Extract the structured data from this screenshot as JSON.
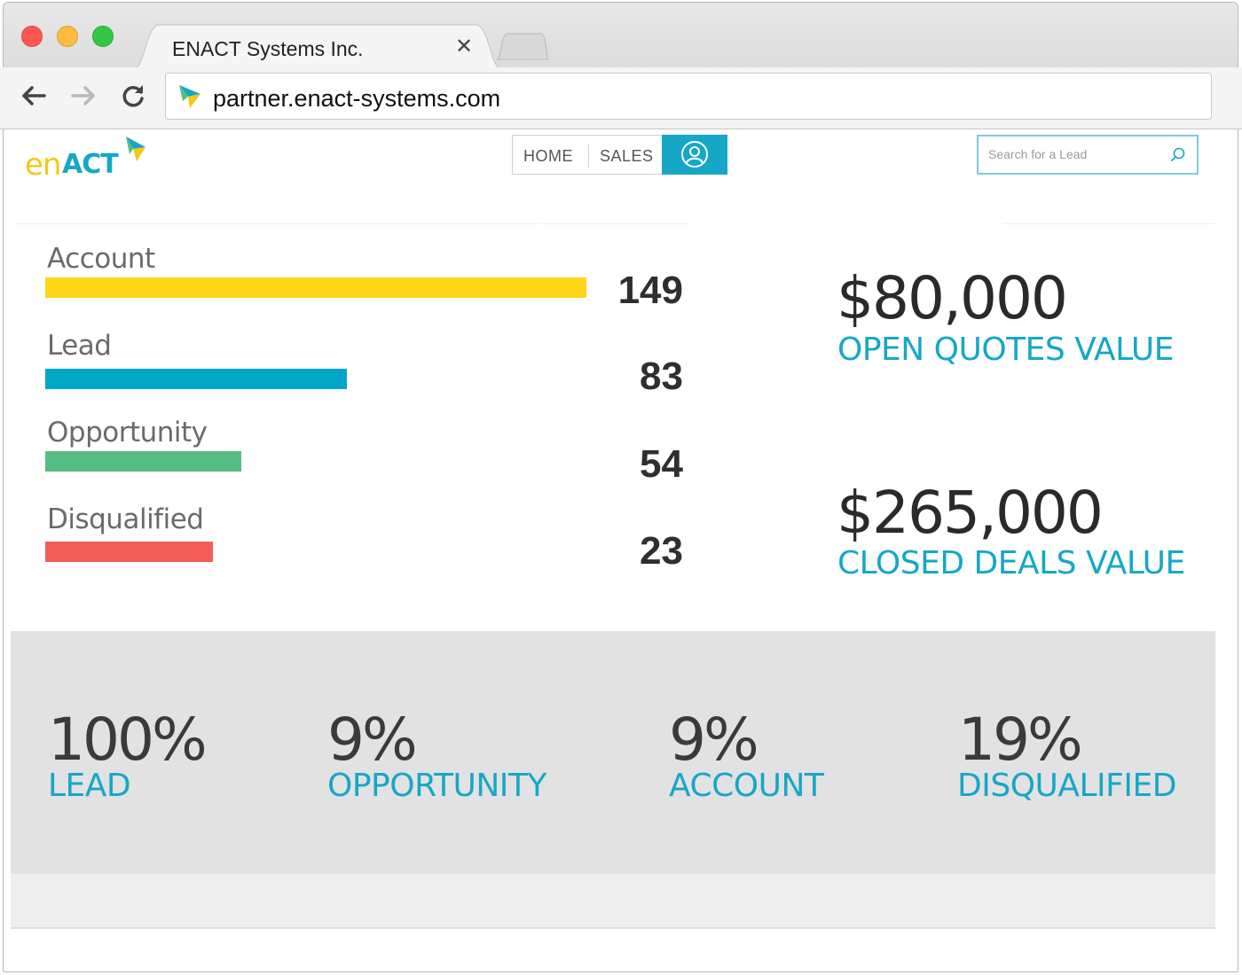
{
  "browser": {
    "tab_title": "ENACT Systems Inc.",
    "tab_close": "✕",
    "url": "partner.enact-systems.com"
  },
  "header": {
    "logo_text_en": "en",
    "logo_text_act": "ACT",
    "nav": {
      "home": "HOME",
      "sales": "SALES"
    },
    "search_placeholder": "Search for a Lead"
  },
  "pipeline": {
    "rows": [
      {
        "label": "Account",
        "count": "149",
        "color": "#fdd619",
        "value": 149
      },
      {
        "label": "Lead",
        "count": "83",
        "color": "#00a6c8",
        "value": 83
      },
      {
        "label": "Opportunity",
        "count": "54",
        "color": "#58bd82",
        "value": 54
      },
      {
        "label": "Disqualified",
        "count": "23",
        "color": "#f35d58",
        "value": 23
      }
    ]
  },
  "kpis": {
    "open_quotes_value": "$80,000",
    "open_quotes_label": "OPEN QUOTES VALUE",
    "closed_deals_value": "$265,000",
    "closed_deals_label": "CLOSED DEALS VALUE"
  },
  "stats": [
    {
      "value": "100%",
      "label": "LEAD"
    },
    {
      "value": "9%",
      "label": "OPPORTUNITY"
    },
    {
      "value": "9%",
      "label": "ACCOUNT"
    },
    {
      "value": "19%",
      "label": "DISQUALIFIED"
    }
  ],
  "colors": {
    "accent": "#16a7c6",
    "yellow": "#fdd619",
    "teal": "#00a6c8",
    "green": "#58bd82",
    "red": "#f35d58"
  }
}
